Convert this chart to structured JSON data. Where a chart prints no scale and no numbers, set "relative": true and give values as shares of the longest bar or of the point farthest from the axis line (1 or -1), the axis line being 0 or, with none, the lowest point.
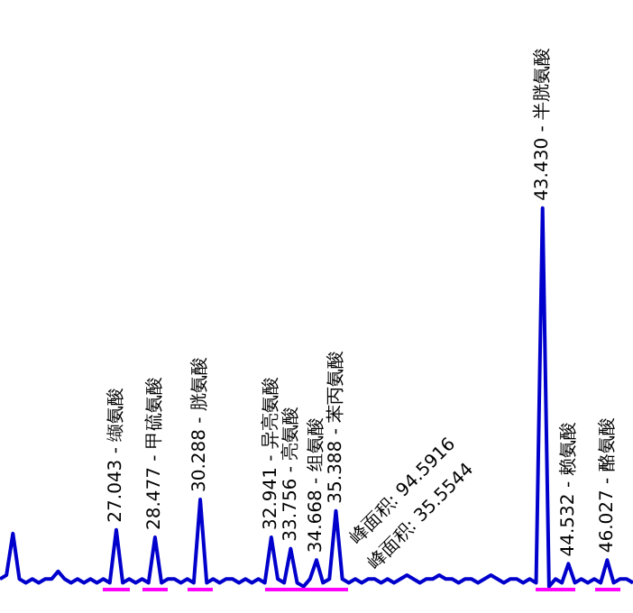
{
  "chart_data": {
    "type": "line",
    "relative": true,
    "legend": false,
    "marker": "none",
    "categories": [
      null,
      null,
      null,
      null,
      null,
      null,
      null,
      null,
      null,
      null,
      null,
      null,
      null,
      null,
      null,
      null,
      null,
      null,
      null,
      null,
      null,
      null,
      null,
      null,
      null,
      null,
      null,
      null,
      null,
      null,
      null,
      null,
      null,
      null,
      null,
      null,
      null,
      null,
      null,
      null,
      null,
      null,
      null,
      null,
      null,
      null,
      null,
      null,
      null,
      null,
      null,
      null,
      null,
      null,
      null,
      null,
      null,
      null,
      null,
      null,
      null,
      null,
      null,
      null,
      null,
      null,
      null,
      null,
      null,
      null,
      null,
      null,
      null,
      null,
      null,
      null,
      null,
      null,
      null,
      null,
      null,
      null,
      null,
      null,
      null,
      null,
      null,
      null,
      null,
      null,
      null,
      null,
      null,
      null,
      null,
      null,
      null,
      null,
      null
    ],
    "series": [
      {
        "color": "#0000cc",
        "values": [
          0.02,
          0.03,
          0.14,
          0.02,
          0.01,
          0.02,
          0.01,
          0.02,
          0.02,
          0.04,
          0.02,
          0.01,
          0.02,
          0.01,
          0.02,
          0.01,
          0.02,
          0.01,
          0.15,
          0.01,
          0.02,
          0.01,
          0.02,
          0.01,
          0.13,
          0.01,
          0.02,
          0.02,
          0.01,
          0.02,
          0.01,
          0.23,
          0.01,
          0.02,
          0.01,
          0.02,
          0.02,
          0.01,
          0.02,
          0.01,
          0.02,
          0.01,
          0.13,
          0.02,
          0.01,
          0.1,
          0.01,
          0,
          0.02,
          0.07,
          0.01,
          0.02,
          0.2,
          0.02,
          0.01,
          0.02,
          0.01,
          0.02,
          0.02,
          0.01,
          0.02,
          0.01,
          0.02,
          0.03,
          0.02,
          0.01,
          0.02,
          0.02,
          0.03,
          0.02,
          0.02,
          0.01,
          0.02,
          0.02,
          0.01,
          0.02,
          0.03,
          0.02,
          0.01,
          0.02,
          0.02,
          0.01,
          0.02,
          0.01,
          1,
          0,
          0.02,
          0.01,
          0.06,
          0.01,
          0.02,
          0.01,
          0.02,
          0.01,
          0.07,
          0.01,
          0.02,
          0.02,
          0.01
        ]
      }
    ],
    "annotations": [
      "27.043 - 缬氨酸",
      "28.477 - 甲硫氨酸",
      "30.288 - 胱氨酸",
      "32.941 - 异亮氨酸",
      "33.756 - 亮氨酸",
      "34.668 - 组氨酸",
      "35.388 - 苯丙氨酸",
      "43.430 - 半胱氨酸",
      "44.532 - 赖氨酸",
      "46.027 - 酪氨酸",
      "峰面积: 94.5916",
      "峰面积: 35.5544"
    ]
  }
}
